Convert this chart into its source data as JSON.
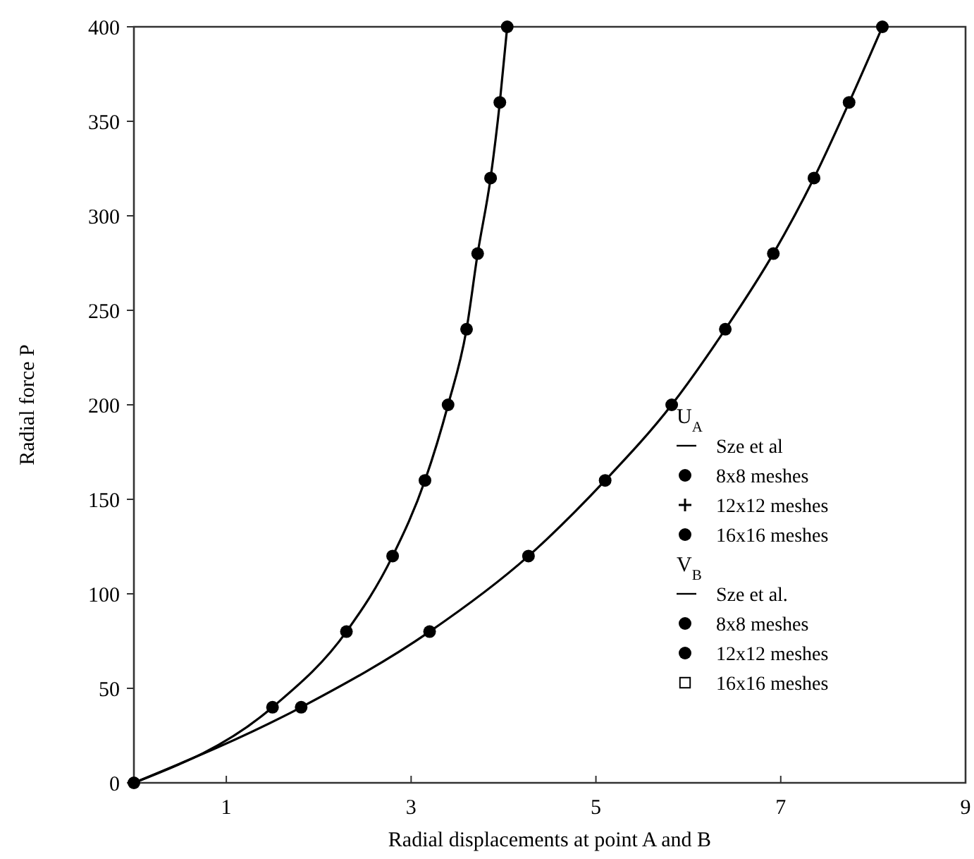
{
  "chart_data": {
    "type": "line",
    "xlabel": "Radial displacements at point A and B",
    "ylabel": "Radial force P",
    "xlim": [
      0,
      9
    ],
    "xticks": [
      1,
      3,
      5,
      7,
      9
    ],
    "ylim": [
      0,
      400
    ],
    "yticks": [
      0,
      50,
      100,
      150,
      200,
      250,
      300,
      350,
      400
    ],
    "grid": false,
    "legend": "bottom right",
    "line_style": "solid",
    "annotations": [
      "U$_{A}$",
      "V$_{B}$"
    ],
    "series": [
      {
        "name": "Sze et al",
        "marker": "none",
        "color": "#000000",
        "x": [
          0,
          1.5,
          2.3,
          2.8,
          3.15,
          3.4,
          3.6,
          3.72,
          3.86,
          3.96,
          4.04
        ],
        "values": [
          0,
          40,
          80,
          120,
          160,
          200,
          240,
          280,
          320,
          360,
          400
        ]
      },
      {
        "name": "8x8 meshes",
        "type": "scatter",
        "marker": "circle",
        "color": "#000000",
        "x": [
          0,
          1.5,
          2.3,
          2.8,
          3.15,
          3.4,
          3.6,
          3.72,
          3.86,
          3.96,
          4.04
        ],
        "values": [
          0,
          40,
          80,
          120,
          160,
          200,
          240,
          280,
          320,
          360,
          400
        ]
      },
      {
        "name": "12x12 meshes",
        "type": "scatter",
        "marker": "cross",
        "color": "#000000",
        "x": [
          null,
          null,
          null,
          null,
          null,
          null,
          null,
          null,
          null,
          null,
          null
        ],
        "values": [
          null,
          null,
          null,
          null,
          null,
          null,
          null,
          null,
          null,
          null,
          null
        ]
      },
      {
        "name": "16x16 meshes",
        "type": "scatter",
        "marker": "circle",
        "color": "#000000",
        "x": [
          null,
          null,
          null,
          null,
          null,
          null,
          null,
          null,
          null,
          null,
          null
        ],
        "values": [
          null,
          null,
          null,
          null,
          null,
          null,
          null,
          null,
          null,
          null,
          null
        ]
      },
      {
        "name": "Sze et al.",
        "marker": "none",
        "color": "#000000",
        "x": [
          0,
          1.81,
          3.2,
          4.27,
          5.1,
          5.82,
          6.4,
          6.92,
          7.36,
          7.74,
          8.1
        ],
        "values": [
          0,
          40,
          80,
          120,
          160,
          200,
          240,
          280,
          320,
          360,
          400
        ]
      },
      {
        "name": "8x8 meshes",
        "type": "scatter",
        "marker": "circle",
        "color": "#000000",
        "x": [
          null,
          1.81,
          3.2,
          4.27,
          5.1,
          5.82,
          6.4,
          6.92,
          7.36,
          7.74,
          8.1
        ],
        "values": [
          null,
          40,
          80,
          120,
          160,
          200,
          240,
          280,
          320,
          360,
          400
        ]
      },
      {
        "name": "12x12 meshes",
        "type": "scatter",
        "marker": "circle",
        "color": "#000000",
        "x": [
          null,
          null,
          null,
          null,
          null,
          null,
          null,
          null,
          null,
          null,
          null
        ],
        "values": [
          null,
          null,
          null,
          null,
          null,
          null,
          null,
          null,
          null,
          null,
          null
        ]
      },
      {
        "name": "16x16 meshes",
        "type": "scatter",
        "marker": "square",
        "color": "#000000",
        "x": [
          null,
          null,
          null,
          null,
          null,
          null,
          null,
          null,
          null,
          null,
          null
        ],
        "values": [
          null,
          null,
          null,
          null,
          null,
          null,
          null,
          null,
          null,
          null,
          null
        ]
      }
    ]
  }
}
